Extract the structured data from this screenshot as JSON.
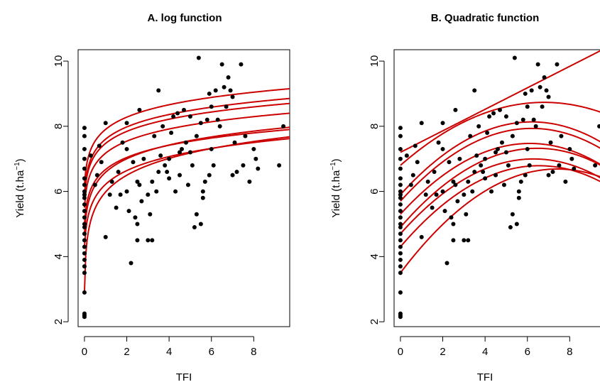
{
  "chart_data": [
    {
      "type": "scatter",
      "title": "A. log function",
      "xlabel": "TFI",
      "ylabel_main": "Yield (t.ha",
      "ylabel_sup": "−1",
      "ylabel_close": ")",
      "xlim": [
        -0.3,
        9.7
      ],
      "ylim": [
        1.85,
        10.35
      ],
      "x_ticks": [
        0,
        2,
        4,
        6,
        8
      ],
      "y_ticks": [
        2,
        4,
        6,
        8,
        10
      ],
      "grid": false,
      "colors": {
        "points": "#000000",
        "curves": "#cc0000"
      },
      "fit_curves": {
        "form": "y = a + b*ln(1 + c*x)",
        "params": [
          {
            "a": 2.9,
            "b": 0.75,
            "c": 60
          },
          {
            "a": 4.3,
            "b": 0.63,
            "c": 20
          },
          {
            "a": 4.7,
            "b": 0.62,
            "c": 20
          },
          {
            "a": 5.0,
            "b": 0.55,
            "c": 20
          },
          {
            "a": 5.5,
            "b": 0.55,
            "c": 20
          },
          {
            "a": 5.8,
            "b": 0.55,
            "c": 20
          },
          {
            "a": 5.9,
            "b": 0.56,
            "c": 20
          },
          {
            "a": 6.2,
            "b": 0.56,
            "c": 20
          }
        ]
      },
      "points": [
        [
          0,
          2.15
        ],
        [
          0,
          2.25
        ],
        [
          0,
          2.2
        ],
        [
          0,
          2.9
        ],
        [
          0,
          3.5
        ],
        [
          0,
          3.7
        ],
        [
          0,
          3.9
        ],
        [
          0,
          4.1
        ],
        [
          0,
          4.3
        ],
        [
          0,
          4.5
        ],
        [
          0,
          4.7
        ],
        [
          0,
          4.9
        ],
        [
          0,
          5.0
        ],
        [
          0,
          5.2
        ],
        [
          0,
          5.4
        ],
        [
          0,
          5.6
        ],
        [
          0,
          5.8
        ],
        [
          0,
          5.9
        ],
        [
          0,
          6.0
        ],
        [
          0,
          6.2
        ],
        [
          0,
          6.4
        ],
        [
          0,
          6.7
        ],
        [
          0,
          7.0
        ],
        [
          0,
          7.3
        ],
        [
          0,
          7.7
        ],
        [
          0,
          7.95
        ],
        [
          0.3,
          7.1
        ],
        [
          0.5,
          6.2
        ],
        [
          0.6,
          6.5
        ],
        [
          0.7,
          7.4
        ],
        [
          0.8,
          6.9
        ],
        [
          1.0,
          8.1
        ],
        [
          1.0,
          4.6
        ],
        [
          1.2,
          5.9
        ],
        [
          1.3,
          6.3
        ],
        [
          1.5,
          5.5
        ],
        [
          1.6,
          6.6
        ],
        [
          1.7,
          5.9
        ],
        [
          1.8,
          7.5
        ],
        [
          2.0,
          6.0
        ],
        [
          2.0,
          7.3
        ],
        [
          2.0,
          8.1
        ],
        [
          2.1,
          5.4
        ],
        [
          2.2,
          3.8
        ],
        [
          2.3,
          6.9
        ],
        [
          2.4,
          5.2
        ],
        [
          2.5,
          4.5
        ],
        [
          2.5,
          5.0
        ],
        [
          2.5,
          6.3
        ],
        [
          2.6,
          6.2
        ],
        [
          2.6,
          8.5
        ],
        [
          2.7,
          5.7
        ],
        [
          2.8,
          7.0
        ],
        [
          3.0,
          5.9
        ],
        [
          3.0,
          4.5
        ],
        [
          3.1,
          5.3
        ],
        [
          3.2,
          4.5
        ],
        [
          3.2,
          6.3
        ],
        [
          3.3,
          7.7
        ],
        [
          3.4,
          6.0
        ],
        [
          3.5,
          9.1
        ],
        [
          3.5,
          6.6
        ],
        [
          3.6,
          7.1
        ],
        [
          3.7,
          8.0
        ],
        [
          3.8,
          6.8
        ],
        [
          3.9,
          6.6
        ],
        [
          4.0,
          7.0
        ],
        [
          4.0,
          6.4
        ],
        [
          4.1,
          7.8
        ],
        [
          4.2,
          8.3
        ],
        [
          4.3,
          6.0
        ],
        [
          4.4,
          8.4
        ],
        [
          4.5,
          7.2
        ],
        [
          4.5,
          6.5
        ],
        [
          4.6,
          7.3
        ],
        [
          4.7,
          8.5
        ],
        [
          4.8,
          7.5
        ],
        [
          4.9,
          6.2
        ],
        [
          5.0,
          8.3
        ],
        [
          5.0,
          7.2
        ],
        [
          5.1,
          6.8
        ],
        [
          5.2,
          4.9
        ],
        [
          5.3,
          5.3
        ],
        [
          5.3,
          7.7
        ],
        [
          5.4,
          10.1
        ],
        [
          5.5,
          8.1
        ],
        [
          5.5,
          5.0
        ],
        [
          5.6,
          5.8
        ],
        [
          5.6,
          6.0
        ],
        [
          5.7,
          6.3
        ],
        [
          5.8,
          8.2
        ],
        [
          5.9,
          9.0
        ],
        [
          5.9,
          6.5
        ],
        [
          6.0,
          8.6
        ],
        [
          6.0,
          7.3
        ],
        [
          6.1,
          6.8
        ],
        [
          6.2,
          9.1
        ],
        [
          6.3,
          8.2
        ],
        [
          6.4,
          8.0
        ],
        [
          6.5,
          9.9
        ],
        [
          6.6,
          9.2
        ],
        [
          6.7,
          8.6
        ],
        [
          6.8,
          9.5
        ],
        [
          6.9,
          9.1
        ],
        [
          7.0,
          8.9
        ],
        [
          7.0,
          6.5
        ],
        [
          7.1,
          7.5
        ],
        [
          7.2,
          6.6
        ],
        [
          7.4,
          9.9
        ],
        [
          7.5,
          6.8
        ],
        [
          7.6,
          7.7
        ],
        [
          7.8,
          6.3
        ],
        [
          8.0,
          7.3
        ],
        [
          8.1,
          7.0
        ],
        [
          8.2,
          6.7
        ],
        [
          9.2,
          6.8
        ],
        [
          9.4,
          8.0
        ]
      ]
    },
    {
      "type": "scatter",
      "title": "B. Quadratic function",
      "xlabel": "TFI",
      "ylabel_main": "Yield (t.ha",
      "ylabel_sup": "−1",
      "ylabel_close": ")",
      "xlim": [
        -0.3,
        9.7
      ],
      "ylim": [
        1.85,
        10.35
      ],
      "x_ticks": [
        0,
        2,
        4,
        6,
        8
      ],
      "y_ticks": [
        2,
        4,
        6,
        8,
        10
      ],
      "grid": false,
      "colors": {
        "points": "#000000",
        "curves": "#cc0000"
      },
      "fit_curves": {
        "form": "y = a + b*x + c*x^2",
        "params": [
          {
            "a": 3.5,
            "b": 0.86,
            "c": -0.058
          },
          {
            "a": 4.3,
            "b": 0.76,
            "c": -0.058
          },
          {
            "a": 4.7,
            "b": 0.73,
            "c": -0.058
          },
          {
            "a": 4.9,
            "b": 0.75,
            "c": -0.058
          },
          {
            "a": 5.3,
            "b": 0.71,
            "c": -0.058
          },
          {
            "a": 5.7,
            "b": 0.72,
            "c": -0.058
          },
          {
            "a": 5.9,
            "b": 0.72,
            "c": -0.058
          },
          {
            "a": 6.8,
            "b": 0.57,
            "c": -0.042
          },
          {
            "a": 7.2,
            "b": 0.33,
            "c": 0.0
          }
        ]
      },
      "points": [
        [
          0,
          2.15
        ],
        [
          0,
          2.25
        ],
        [
          0,
          2.2
        ],
        [
          0,
          2.9
        ],
        [
          0,
          3.5
        ],
        [
          0,
          3.7
        ],
        [
          0,
          3.9
        ],
        [
          0,
          4.1
        ],
        [
          0,
          4.3
        ],
        [
          0,
          4.5
        ],
        [
          0,
          4.7
        ],
        [
          0,
          4.9
        ],
        [
          0,
          5.0
        ],
        [
          0,
          5.2
        ],
        [
          0,
          5.4
        ],
        [
          0,
          5.6
        ],
        [
          0,
          5.8
        ],
        [
          0,
          5.9
        ],
        [
          0,
          6.0
        ],
        [
          0,
          6.2
        ],
        [
          0,
          6.4
        ],
        [
          0,
          6.7
        ],
        [
          0,
          7.0
        ],
        [
          0,
          7.3
        ],
        [
          0,
          7.7
        ],
        [
          0,
          7.95
        ],
        [
          0.3,
          7.1
        ],
        [
          0.5,
          6.2
        ],
        [
          0.6,
          6.5
        ],
        [
          0.7,
          7.4
        ],
        [
          0.8,
          6.9
        ],
        [
          1.0,
          8.1
        ],
        [
          1.0,
          4.6
        ],
        [
          1.2,
          5.9
        ],
        [
          1.3,
          6.3
        ],
        [
          1.5,
          5.5
        ],
        [
          1.6,
          6.6
        ],
        [
          1.7,
          5.9
        ],
        [
          1.8,
          7.5
        ],
        [
          2.0,
          6.0
        ],
        [
          2.0,
          7.3
        ],
        [
          2.0,
          8.1
        ],
        [
          2.1,
          5.4
        ],
        [
          2.2,
          3.8
        ],
        [
          2.3,
          6.9
        ],
        [
          2.4,
          5.2
        ],
        [
          2.5,
          4.5
        ],
        [
          2.5,
          5.0
        ],
        [
          2.5,
          6.3
        ],
        [
          2.6,
          6.2
        ],
        [
          2.6,
          8.5
        ],
        [
          2.7,
          5.7
        ],
        [
          2.8,
          7.0
        ],
        [
          3.0,
          5.9
        ],
        [
          3.0,
          4.5
        ],
        [
          3.1,
          5.3
        ],
        [
          3.2,
          4.5
        ],
        [
          3.2,
          6.3
        ],
        [
          3.3,
          7.7
        ],
        [
          3.4,
          6.0
        ],
        [
          3.5,
          9.1
        ],
        [
          3.5,
          6.6
        ],
        [
          3.6,
          7.1
        ],
        [
          3.7,
          8.0
        ],
        [
          3.8,
          6.8
        ],
        [
          3.9,
          6.6
        ],
        [
          4.0,
          7.0
        ],
        [
          4.0,
          6.4
        ],
        [
          4.1,
          7.8
        ],
        [
          4.2,
          8.3
        ],
        [
          4.3,
          6.0
        ],
        [
          4.4,
          8.4
        ],
        [
          4.5,
          7.2
        ],
        [
          4.5,
          6.5
        ],
        [
          4.6,
          7.3
        ],
        [
          4.7,
          8.5
        ],
        [
          4.8,
          7.5
        ],
        [
          4.9,
          6.2
        ],
        [
          5.0,
          8.3
        ],
        [
          5.0,
          7.2
        ],
        [
          5.1,
          6.8
        ],
        [
          5.2,
          4.9
        ],
        [
          5.3,
          5.3
        ],
        [
          5.3,
          7.7
        ],
        [
          5.4,
          10.1
        ],
        [
          5.5,
          8.1
        ],
        [
          5.5,
          5.0
        ],
        [
          5.6,
          5.8
        ],
        [
          5.6,
          6.0
        ],
        [
          5.7,
          6.3
        ],
        [
          5.8,
          8.2
        ],
        [
          5.9,
          9.0
        ],
        [
          5.9,
          6.5
        ],
        [
          6.0,
          8.6
        ],
        [
          6.0,
          7.3
        ],
        [
          6.1,
          6.8
        ],
        [
          6.2,
          9.1
        ],
        [
          6.3,
          8.2
        ],
        [
          6.4,
          8.0
        ],
        [
          6.5,
          9.9
        ],
        [
          6.6,
          9.2
        ],
        [
          6.7,
          8.6
        ],
        [
          6.8,
          9.5
        ],
        [
          6.9,
          9.1
        ],
        [
          7.0,
          8.9
        ],
        [
          7.0,
          6.5
        ],
        [
          7.1,
          7.5
        ],
        [
          7.2,
          6.6
        ],
        [
          7.4,
          9.9
        ],
        [
          7.5,
          6.8
        ],
        [
          7.6,
          7.7
        ],
        [
          7.8,
          6.3
        ],
        [
          8.0,
          7.3
        ],
        [
          8.1,
          7.0
        ],
        [
          8.2,
          6.7
        ],
        [
          9.2,
          6.8
        ],
        [
          9.4,
          8.0
        ]
      ]
    }
  ]
}
